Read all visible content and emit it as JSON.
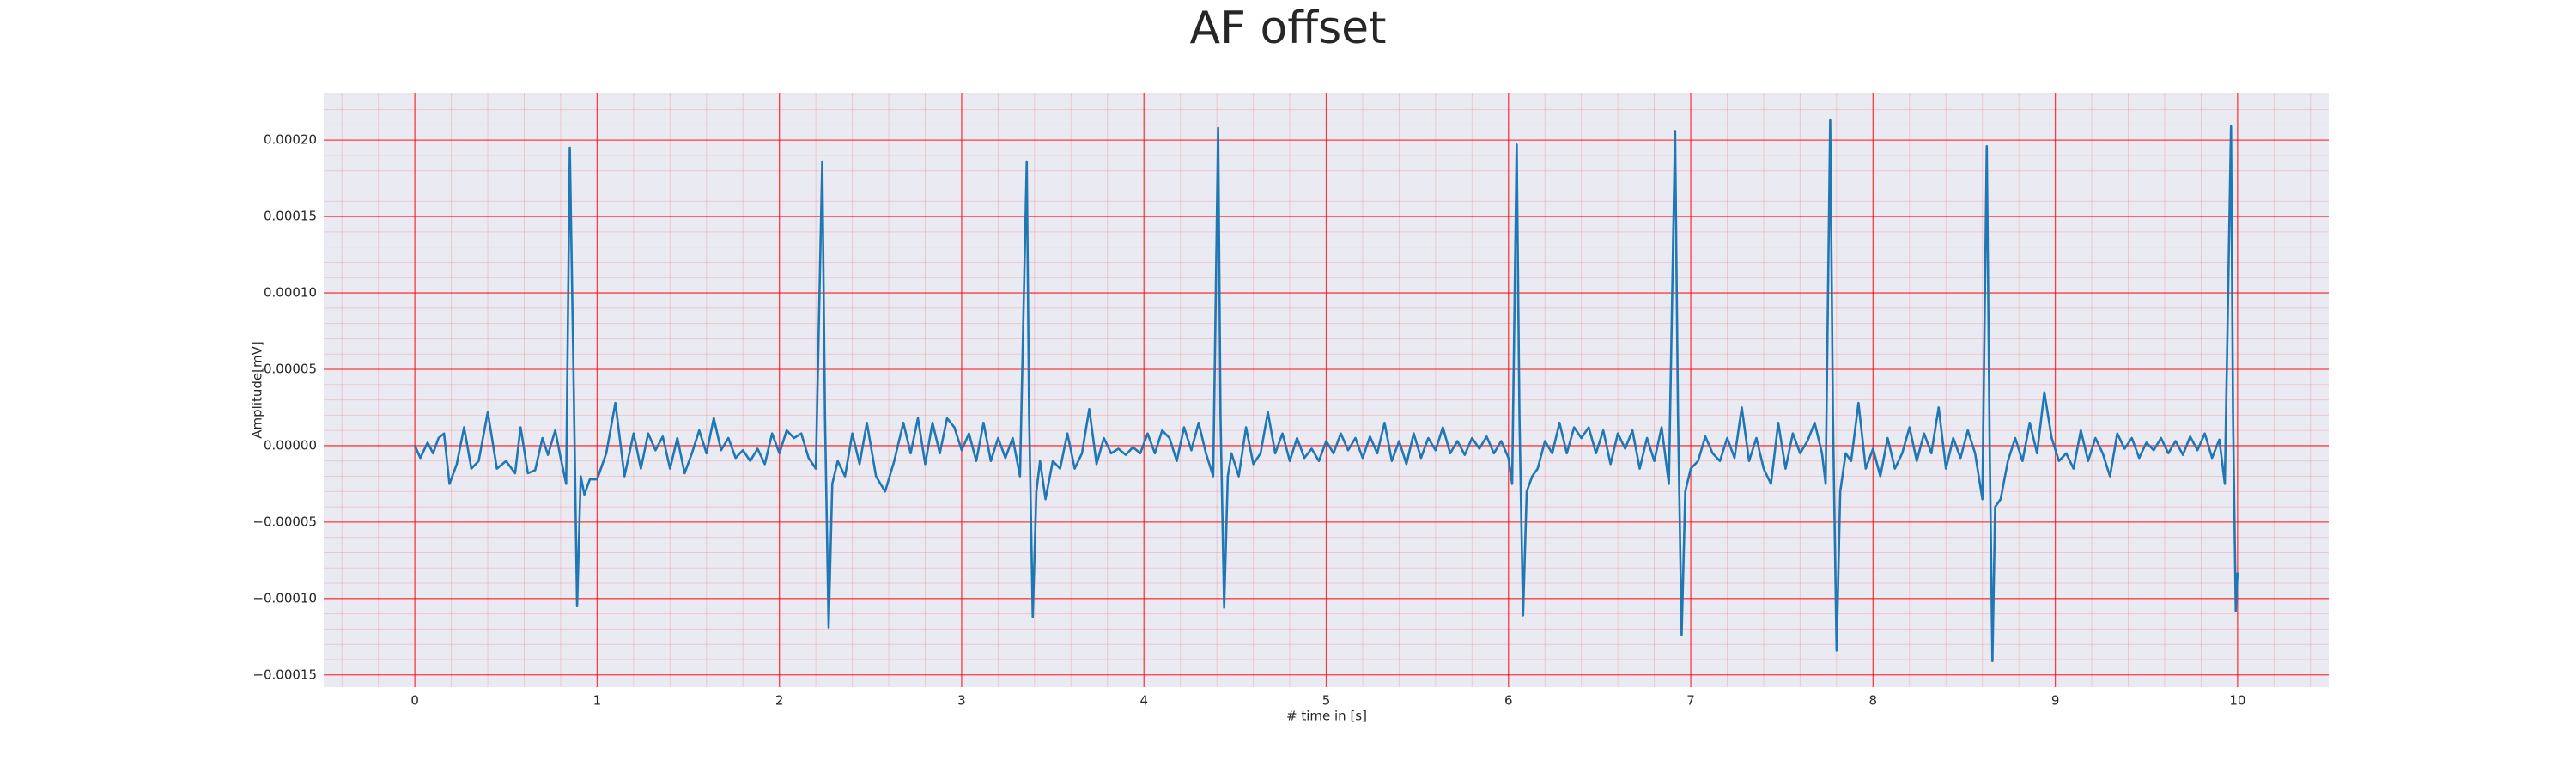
{
  "chart_data": {
    "type": "line",
    "title": "AF offset",
    "xlabel": "# time in [s]",
    "ylabel": "Amplitude[mV]",
    "color": "#1f77b4",
    "background": "#eaeaf2",
    "grid": true,
    "grid_color": "#ff0000",
    "xlim": [
      -0.5,
      10.5
    ],
    "xticks": [
      0,
      1,
      2,
      3,
      4,
      5,
      6,
      7,
      8,
      9,
      10
    ],
    "ylim": [
      -0.000158,
      0.000231
    ],
    "yticks": [
      {
        "value": -0.00015,
        "label": "−0.00015"
      },
      {
        "value": -0.0001,
        "label": "−0.00010"
      },
      {
        "value": -5e-05,
        "label": "−0.00005"
      },
      {
        "value": 0,
        "label": "0.00000"
      },
      {
        "value": 5e-05,
        "label": "0.00005"
      },
      {
        "value": 0.0001,
        "label": "0.00010"
      },
      {
        "value": 0.00015,
        "label": "0.00015"
      },
      {
        "value": 0.0002,
        "label": "0.00020"
      }
    ],
    "x": [
      0,
      0.03,
      0.07,
      0.1,
      0.13,
      0.16,
      0.19,
      0.23,
      0.27,
      0.31,
      0.35,
      0.4,
      0.45,
      0.5,
      0.55,
      0.58,
      0.62,
      0.66,
      0.7,
      0.73,
      0.77,
      0.8,
      0.83,
      0.85,
      0.87,
      0.89,
      0.91,
      0.93,
      0.96,
      1.0,
      1.05,
      1.1,
      1.15,
      1.2,
      1.24,
      1.28,
      1.32,
      1.36,
      1.4,
      1.44,
      1.48,
      1.52,
      1.56,
      1.6,
      1.64,
      1.68,
      1.72,
      1.76,
      1.8,
      1.84,
      1.88,
      1.92,
      1.96,
      2.0,
      2.04,
      2.08,
      2.12,
      2.16,
      2.2,
      2.235,
      2.25,
      2.27,
      2.29,
      2.32,
      2.36,
      2.4,
      2.44,
      2.48,
      2.53,
      2.58,
      2.63,
      2.68,
      2.72,
      2.76,
      2.8,
      2.84,
      2.88,
      2.92,
      2.96,
      3.0,
      3.04,
      3.08,
      3.12,
      3.16,
      3.2,
      3.24,
      3.28,
      3.32,
      3.357,
      3.37,
      3.39,
      3.41,
      3.43,
      3.46,
      3.5,
      3.54,
      3.58,
      3.62,
      3.66,
      3.7,
      3.74,
      3.78,
      3.82,
      3.86,
      3.9,
      3.94,
      3.98,
      4.02,
      4.06,
      4.1,
      4.14,
      4.18,
      4.22,
      4.26,
      4.3,
      4.34,
      4.38,
      4.407,
      4.42,
      4.44,
      4.46,
      4.48,
      4.52,
      4.56,
      4.6,
      4.64,
      4.68,
      4.72,
      4.76,
      4.8,
      4.84,
      4.88,
      4.92,
      4.96,
      5.0,
      5.04,
      5.08,
      5.12,
      5.16,
      5.2,
      5.24,
      5.28,
      5.32,
      5.36,
      5.4,
      5.44,
      5.48,
      5.52,
      5.56,
      5.6,
      5.64,
      5.68,
      5.72,
      5.76,
      5.8,
      5.84,
      5.88,
      5.92,
      5.96,
      6.0,
      6.02,
      6.045,
      6.06,
      6.08,
      6.1,
      6.13,
      6.16,
      6.2,
      6.24,
      6.28,
      6.32,
      6.36,
      6.4,
      6.44,
      6.48,
      6.52,
      6.56,
      6.6,
      6.64,
      6.68,
      6.72,
      6.76,
      6.8,
      6.84,
      6.88,
      6.914,
      6.93,
      6.95,
      6.97,
      7.0,
      7.04,
      7.08,
      7.12,
      7.16,
      7.2,
      7.24,
      7.28,
      7.32,
      7.36,
      7.4,
      7.44,
      7.48,
      7.52,
      7.56,
      7.6,
      7.64,
      7.68,
      7.72,
      7.74,
      7.765,
      7.78,
      7.8,
      7.82,
      7.85,
      7.88,
      7.92,
      7.96,
      8.0,
      8.04,
      8.08,
      8.12,
      8.16,
      8.2,
      8.24,
      8.28,
      8.32,
      8.36,
      8.4,
      8.44,
      8.48,
      8.52,
      8.56,
      8.6,
      8.624,
      8.64,
      8.655,
      8.67,
      8.7,
      8.74,
      8.78,
      8.82,
      8.86,
      8.9,
      8.94,
      8.98,
      9.02,
      9.06,
      9.1,
      9.14,
      9.18,
      9.22,
      9.26,
      9.3,
      9.34,
      9.38,
      9.42,
      9.46,
      9.5,
      9.54,
      9.58,
      9.62,
      9.66,
      9.7,
      9.74,
      9.78,
      9.82,
      9.86,
      9.9,
      9.93,
      9.964,
      9.975,
      9.99,
      10.0
    ],
    "values": [
      0,
      -8e-06,
      2e-06,
      -5e-06,
      5e-06,
      8e-06,
      -2.5e-05,
      -1.2e-05,
      1.2e-05,
      -1.5e-05,
      -1e-05,
      2.2e-05,
      -1.5e-05,
      -1e-05,
      -1.8e-05,
      1.2e-05,
      -1.8e-05,
      -1.6e-05,
      5e-06,
      -6e-06,
      1e-05,
      -8e-06,
      -2.5e-05,
      0.000195,
      5e-05,
      -0.000105,
      -2e-05,
      -3.2e-05,
      -2.2e-05,
      -2.2e-05,
      -5e-06,
      2.8e-05,
      -2e-05,
      8e-06,
      -1.5e-05,
      8e-06,
      -3e-06,
      6e-06,
      -1.5e-05,
      5e-06,
      -1.8e-05,
      -5e-06,
      1e-05,
      -5e-06,
      1.8e-05,
      -3e-06,
      5e-06,
      -8e-06,
      -3e-06,
      -1e-05,
      -2e-06,
      -1.2e-05,
      8e-06,
      -5e-06,
      1e-05,
      5e-06,
      8e-06,
      -8e-06,
      -1.5e-05,
      0.000186,
      2e-05,
      -0.000119,
      -2.5e-05,
      -1e-05,
      -2e-05,
      8e-06,
      -1.2e-05,
      1.5e-05,
      -2e-05,
      -3e-05,
      -1e-05,
      1.5e-05,
      -5e-06,
      1.8e-05,
      -1.2e-05,
      1.5e-05,
      -5e-06,
      1.8e-05,
      1.2e-05,
      -3e-06,
      8e-06,
      -1e-05,
      1.5e-05,
      -1e-05,
      5e-06,
      -8e-06,
      5e-06,
      -2e-05,
      0.000186,
      2e-05,
      -0.000112,
      -3e-05,
      -1e-05,
      -3.5e-05,
      -1e-05,
      -1.5e-05,
      8e-06,
      -1.5e-05,
      -5e-06,
      2.4e-05,
      -1.2e-05,
      5e-06,
      -5e-06,
      -2e-06,
      -6e-06,
      -1e-06,
      -5e-06,
      8e-06,
      -5e-06,
      1e-05,
      5e-06,
      -1e-05,
      1.2e-05,
      -3e-06,
      1.5e-05,
      -5e-06,
      -2e-05,
      0.000208,
      2e-05,
      -0.000106,
      -2e-05,
      -5e-06,
      -2e-05,
      1.2e-05,
      -1.2e-05,
      -5e-06,
      2.2e-05,
      -5e-06,
      8e-06,
      -1e-05,
      5e-06,
      -8e-06,
      -2e-06,
      -1e-05,
      3e-06,
      -5e-06,
      8e-06,
      -3e-06,
      5e-06,
      -8e-06,
      6e-06,
      -5e-06,
      1.5e-05,
      -1e-05,
      3e-06,
      -1.2e-05,
      8e-06,
      -8e-06,
      5e-06,
      -3e-06,
      1.2e-05,
      -5e-06,
      3e-06,
      -6e-06,
      5e-06,
      -2e-06,
      6e-06,
      -5e-06,
      3e-06,
      -8e-06,
      -2.5e-05,
      0.000197,
      2e-05,
      -0.000111,
      -3e-05,
      -2e-05,
      -1.5e-05,
      3e-06,
      -5e-06,
      1.5e-05,
      -5e-06,
      1.2e-05,
      5e-06,
      1.2e-05,
      -5e-06,
      1e-05,
      -1.2e-05,
      8e-06,
      -2e-06,
      1e-05,
      -1.5e-05,
      5e-06,
      -1e-05,
      1.2e-05,
      -2.5e-05,
      0.000206,
      2e-05,
      -0.000124,
      -3e-05,
      -1.5e-05,
      -1e-05,
      6e-06,
      -5e-06,
      -1e-05,
      5e-06,
      -8e-06,
      2.5e-05,
      -1e-05,
      5e-06,
      -1.5e-05,
      -2.5e-05,
      1.5e-05,
      -1.5e-05,
      8e-06,
      -5e-06,
      3e-06,
      1.5e-05,
      -5e-06,
      -2.5e-05,
      0.000213,
      2e-05,
      -0.000134,
      -3e-05,
      -5e-06,
      -1e-05,
      2.8e-05,
      -1.5e-05,
      -2e-06,
      -2e-05,
      5e-06,
      -1.5e-05,
      -5e-06,
      1.2e-05,
      -1e-05,
      8e-06,
      -5e-06,
      2.5e-05,
      -1.5e-05,
      5e-06,
      -8e-06,
      1e-05,
      -5e-06,
      -3.5e-05,
      0.000196,
      0,
      -0.000141,
      -4e-05,
      -3.5e-05,
      -1e-05,
      5e-06,
      -1e-05,
      1.5e-05,
      -5e-06,
      3.5e-05,
      5e-06,
      -1e-05,
      -5e-06,
      -1.5e-05,
      1e-05,
      -1e-05,
      5e-06,
      -5e-06,
      -2e-05,
      8e-06,
      -2e-06,
      5e-06,
      -8e-06,
      2e-06,
      -3e-06,
      5e-06,
      -5e-06,
      3e-06,
      -6e-06,
      6e-06,
      -3e-06,
      8e-06,
      -8e-06,
      4e-06,
      -2.5e-05,
      0.000209,
      2e-05,
      -0.000108,
      -8.3e-05
    ]
  }
}
